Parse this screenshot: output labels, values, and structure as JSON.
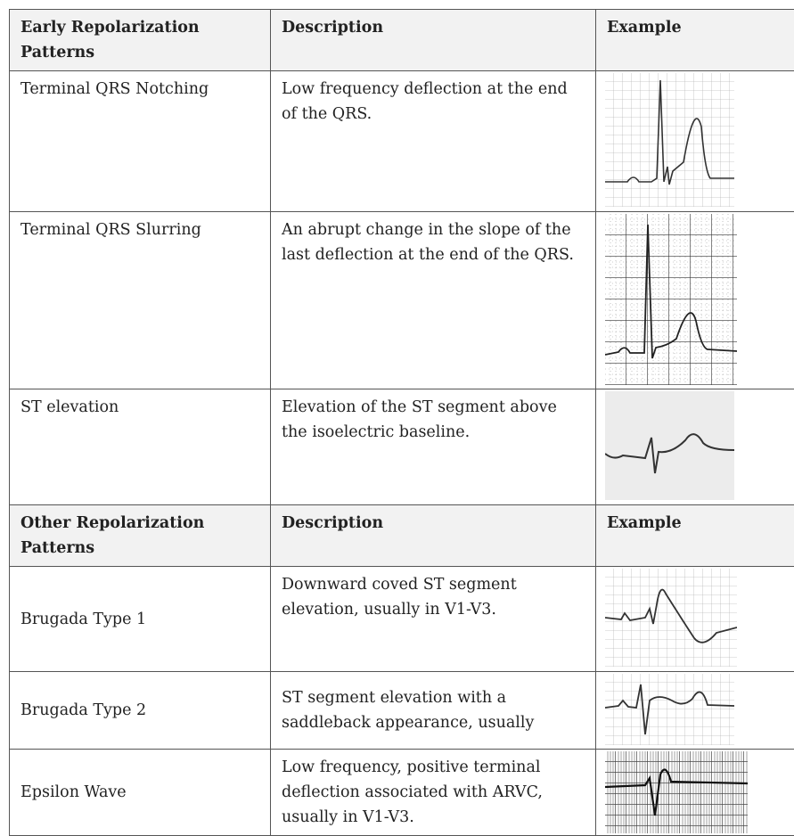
{
  "table": {
    "sections": [
      {
        "header": [
          "Early Repolarization Patterns",
          "Description",
          "Example"
        ],
        "rows": [
          [
            "Terminal QRS Notching",
            "Low frequency deflection at the end of the QRS."
          ],
          [
            "Terminal QRS Slurring",
            "An abrupt change in the slope of the last deflection at the end of the QRS."
          ],
          [
            "ST elevation",
            "Elevation of the ST segment above the isoelectric baseline."
          ]
        ]
      },
      {
        "header": [
          "Other Repolarization Patterns",
          "Description",
          "Example"
        ],
        "rows": [
          [
            "Brugada Type 1",
            "Downward coved ST segment elevation, usually in V1-V3."
          ],
          [
            "Brugada Type 2",
            "ST segment elevation with a saddleback appearance, usually"
          ],
          [
            "Epsilon Wave",
            "Low frequency, positive terminal deflection associated with ARVC, usually in V1-V3."
          ]
        ]
      }
    ]
  }
}
